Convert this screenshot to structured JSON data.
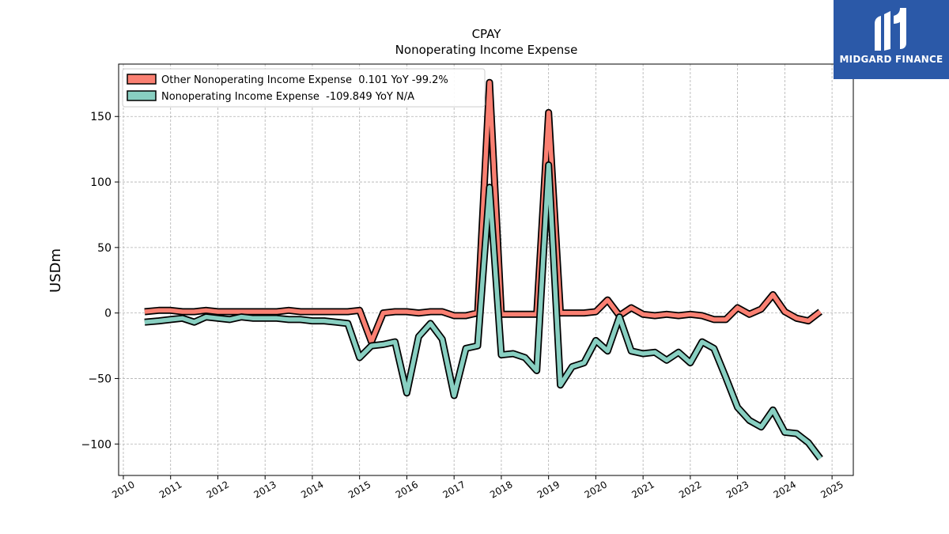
{
  "chart_data": {
    "type": "line",
    "title": "CPAY",
    "subtitle": "Nonoperating Income Expense",
    "ylabel": "USDm",
    "xlabel": "",
    "xlim": [
      2009.9,
      2025.45
    ],
    "ylim": [
      -124,
      190
    ],
    "yticks": [
      -100,
      -50,
      0,
      50,
      100,
      150
    ],
    "ytick_labels": [
      "−100",
      "−50",
      "0",
      "50",
      "100",
      "150"
    ],
    "xticks": [
      2010,
      2011,
      2012,
      2013,
      2014,
      2015,
      2016,
      2017,
      2018,
      2019,
      2020,
      2021,
      2022,
      2023,
      2024,
      2025
    ],
    "xtick_labels": [
      "2010",
      "2011",
      "2012",
      "2013",
      "2014",
      "2015",
      "2016",
      "2017",
      "2018",
      "2019",
      "2020",
      "2021",
      "2022",
      "2023",
      "2024",
      "2025"
    ],
    "grid": true,
    "legend_position": "top-left",
    "series": [
      {
        "name": "Other Nonoperating Income Expense  0.101 YoY -99.2%",
        "color": "#fa8072",
        "x": [
          2010.45,
          2010.75,
          2011.0,
          2011.25,
          2011.5,
          2011.75,
          2012.0,
          2012.25,
          2012.5,
          2012.75,
          2013.0,
          2013.25,
          2013.5,
          2013.75,
          2014.0,
          2014.25,
          2014.5,
          2014.75,
          2015.0,
          2015.25,
          2015.5,
          2015.75,
          2016.0,
          2016.25,
          2016.5,
          2016.75,
          2017.0,
          2017.25,
          2017.5,
          2017.75,
          2018.0,
          2018.25,
          2018.5,
          2018.75,
          2019.0,
          2019.25,
          2019.5,
          2019.75,
          2020.0,
          2020.25,
          2020.5,
          2020.75,
          2021.0,
          2021.25,
          2021.5,
          2021.75,
          2022.0,
          2022.25,
          2022.5,
          2022.75,
          2023.0,
          2023.25,
          2023.5,
          2023.75,
          2024.0,
          2024.25,
          2024.5,
          2024.75
        ],
        "values": [
          1,
          2,
          2,
          1,
          1,
          2,
          1,
          1,
          1,
          1,
          1,
          1,
          2,
          1,
          1,
          1,
          1,
          1,
          2,
          -22,
          0,
          1,
          1,
          0,
          1,
          1,
          -2,
          -2,
          0,
          176,
          -1,
          -1,
          -1,
          -1,
          153,
          0,
          0,
          0,
          1,
          10,
          -2,
          4,
          -1,
          -2,
          -1,
          -2,
          -1,
          -2,
          -5,
          -5,
          4,
          -1,
          3,
          14,
          1,
          -4,
          -6,
          1
        ]
      },
      {
        "name": "Nonoperating Income Expense  -109.849 YoY N/A",
        "color": "#88cfc1",
        "x": [
          2010.45,
          2010.75,
          2011.0,
          2011.25,
          2011.5,
          2011.75,
          2012.0,
          2012.25,
          2012.5,
          2012.75,
          2013.0,
          2013.25,
          2013.5,
          2013.75,
          2014.0,
          2014.25,
          2014.5,
          2014.75,
          2015.0,
          2015.25,
          2015.5,
          2015.75,
          2016.0,
          2016.25,
          2016.5,
          2016.75,
          2017.0,
          2017.25,
          2017.5,
          2017.75,
          2018.0,
          2018.25,
          2018.5,
          2018.75,
          2019.0,
          2019.25,
          2019.5,
          2019.75,
          2020.0,
          2020.25,
          2020.5,
          2020.75,
          2021.0,
          2021.25,
          2021.5,
          2021.75,
          2022.0,
          2022.25,
          2022.5,
          2022.75,
          2023.0,
          2023.25,
          2023.5,
          2023.75,
          2024.0,
          2024.25,
          2024.5,
          2024.75
        ],
        "values": [
          -7,
          -6,
          -5,
          -4,
          -7,
          -3,
          -4,
          -5,
          -3,
          -4,
          -4,
          -4,
          -5,
          -5,
          -6,
          -6,
          -7,
          -8,
          -34,
          -25,
          -24,
          -22,
          -61,
          -18,
          -8,
          -20,
          -63,
          -27,
          -25,
          96,
          -32,
          -31,
          -34,
          -44,
          113,
          -55,
          -41,
          -38,
          -21,
          -29,
          -3,
          -29,
          -31,
          -30,
          -36,
          -30,
          -38,
          -22,
          -27,
          -49,
          -72,
          -82,
          -87,
          -74,
          -91,
          -92,
          -99,
          -111
        ]
      }
    ]
  },
  "brand": {
    "name": "MIDGARD FINANCE",
    "bg_color": "#2b59a8"
  }
}
